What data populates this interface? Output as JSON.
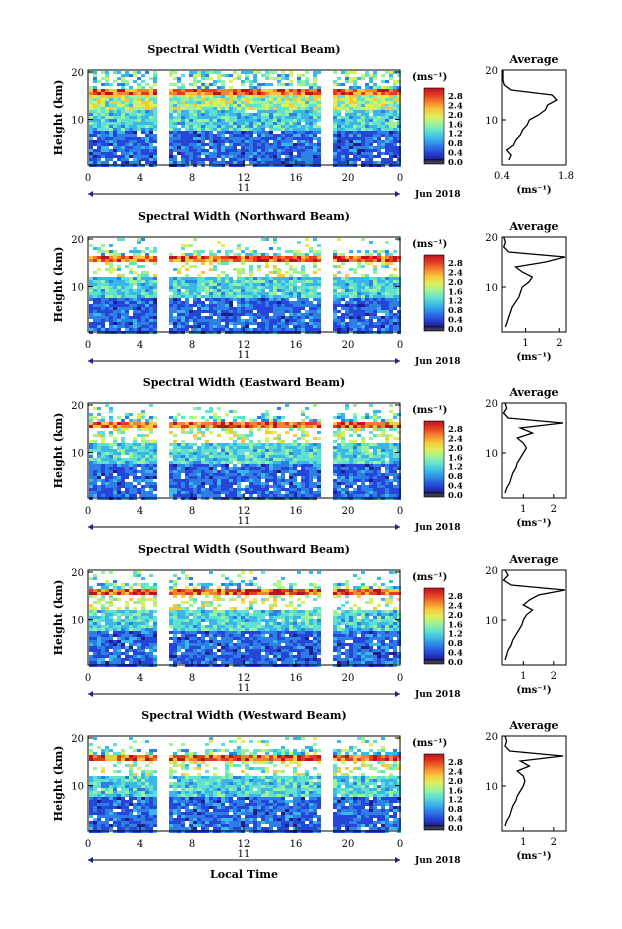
{
  "page": {
    "xlabel": "Local Time",
    "day_label": "11",
    "month_label": "Jun 2018",
    "avg_title": "Average",
    "colorbar_unit": "(ms⁻¹)",
    "avg_xlabel": "(ms⁻¹)",
    "ylabel": "Height (km)"
  },
  "colors": {
    "scale": [
      "#1e1e8c",
      "#2546d8",
      "#2d7fe6",
      "#3bb6ea",
      "#5fe0d0",
      "#9cf29a",
      "#dcf05e",
      "#f7c83c",
      "#f4842c",
      "#e43b23",
      "#b8141c"
    ],
    "low": "#3a3a55"
  },
  "chart_data": [
    {
      "type": "heatmap",
      "title": "Spectral Width (Vertical Beam)",
      "ylabel": "Height (km)",
      "x_ticks": [
        "0",
        "4",
        "8",
        "12",
        "16",
        "20",
        "0"
      ],
      "y_ticks": [
        "20",
        "10"
      ],
      "xlim": [
        0,
        24
      ],
      "ylim": [
        1,
        20
      ],
      "colorbar_ticks": [
        "2.8",
        "2.4",
        "2.0",
        "1.6",
        "1.2",
        "0.8",
        "0.4",
        "0.0"
      ],
      "colorbar_range": [
        0,
        3.0
      ],
      "gaps_hours": [
        [
          5.5,
          5.9
        ],
        [
          17.8,
          18.3
        ]
      ],
      "avg": {
        "x_ticks": [
          "0.4",
          "1.8"
        ],
        "xlim": [
          0.4,
          1.8
        ],
        "ylim": [
          1,
          20
        ],
        "height_km": [
          2,
          3,
          4,
          5,
          6,
          7,
          8,
          9,
          10,
          11,
          12,
          13,
          14,
          15,
          16,
          17,
          18,
          19,
          20
        ],
        "values": [
          0.55,
          0.6,
          0.5,
          0.65,
          0.7,
          0.8,
          0.85,
          0.95,
          1.0,
          1.2,
          1.35,
          1.4,
          1.6,
          1.5,
          0.6,
          0.45,
          0.42,
          0.41,
          0.4
        ]
      }
    },
    {
      "type": "heatmap",
      "title": "Spectral Width (Northward Beam)",
      "ylabel": "Height (km)",
      "x_ticks": [
        "0",
        "4",
        "8",
        "12",
        "16",
        "20",
        "0"
      ],
      "y_ticks": [
        "20",
        "10"
      ],
      "xlim": [
        0,
        24
      ],
      "ylim": [
        1,
        20
      ],
      "colorbar_ticks": [
        "2.8",
        "2.4",
        "2.0",
        "1.6",
        "1.2",
        "0.8",
        "0.4",
        "0.0"
      ],
      "colorbar_range": [
        0,
        3.0
      ],
      "gaps_hours": [
        [
          5.5,
          5.9
        ],
        [
          17.8,
          18.3
        ]
      ],
      "avg": {
        "x_ticks": [
          "1",
          "2"
        ],
        "xlim": [
          0.3,
          2.2
        ],
        "ylim": [
          1,
          20
        ],
        "height_km": [
          2,
          3,
          4,
          5,
          6,
          7,
          8,
          9,
          10,
          11,
          12,
          13,
          14,
          15,
          16,
          17,
          18,
          19,
          20
        ],
        "values": [
          0.4,
          0.45,
          0.5,
          0.55,
          0.6,
          0.7,
          0.8,
          0.85,
          0.9,
          1.1,
          1.2,
          0.9,
          0.7,
          1.6,
          2.2,
          0.5,
          0.35,
          0.4,
          0.35
        ]
      }
    },
    {
      "type": "heatmap",
      "title": "Spectral Width (Eastward Beam)",
      "ylabel": "Height (km)",
      "x_ticks": [
        "0",
        "4",
        "8",
        "12",
        "16",
        "20",
        "0"
      ],
      "y_ticks": [
        "20",
        "10"
      ],
      "xlim": [
        0,
        24
      ],
      "ylim": [
        1,
        20
      ],
      "colorbar_ticks": [
        "2.8",
        "2.4",
        "2.0",
        "1.6",
        "1.2",
        "0.8",
        "0.4",
        "0.0"
      ],
      "colorbar_range": [
        0,
        3.0
      ],
      "gaps_hours": [
        [
          5.5,
          5.9
        ],
        [
          17.8,
          18.3
        ]
      ],
      "avg": {
        "x_ticks": [
          "1",
          "2"
        ],
        "xlim": [
          0.3,
          2.4
        ],
        "ylim": [
          1,
          20
        ],
        "height_km": [
          2,
          3,
          4,
          5,
          6,
          7,
          8,
          9,
          10,
          11,
          12,
          13,
          14,
          15,
          16,
          17,
          18,
          19,
          20
        ],
        "values": [
          0.4,
          0.45,
          0.55,
          0.6,
          0.65,
          0.75,
          0.8,
          0.9,
          1.0,
          1.1,
          1.0,
          0.8,
          1.3,
          0.9,
          2.3,
          0.5,
          0.35,
          0.45,
          0.4
        ]
      }
    },
    {
      "type": "heatmap",
      "title": "Spectral Width (Southward Beam)",
      "ylabel": "Height (km)",
      "x_ticks": [
        "0",
        "4",
        "8",
        "12",
        "16",
        "20",
        "0"
      ],
      "y_ticks": [
        "20",
        "10"
      ],
      "xlim": [
        0,
        24
      ],
      "ylim": [
        1,
        20
      ],
      "colorbar_ticks": [
        "2.8",
        "2.4",
        "2.0",
        "1.6",
        "1.2",
        "0.8",
        "0.4",
        "0.0"
      ],
      "colorbar_range": [
        0,
        3.0
      ],
      "gaps_hours": [
        [
          5.5,
          5.9
        ],
        [
          17.8,
          18.3
        ]
      ],
      "avg": {
        "x_ticks": [
          "1",
          "2"
        ],
        "xlim": [
          0.3,
          2.4
        ],
        "ylim": [
          1,
          20
        ],
        "height_km": [
          2,
          3,
          4,
          5,
          6,
          7,
          8,
          9,
          10,
          11,
          12,
          13,
          14,
          15,
          16,
          17,
          18,
          19,
          20
        ],
        "values": [
          0.4,
          0.45,
          0.5,
          0.6,
          0.65,
          0.75,
          0.85,
          0.95,
          1.0,
          1.1,
          1.3,
          1.0,
          1.2,
          1.5,
          2.4,
          0.6,
          0.35,
          0.5,
          0.4
        ]
      }
    },
    {
      "type": "heatmap",
      "title": "Spectral Width (Westward Beam)",
      "ylabel": "Height (km)",
      "x_ticks": [
        "0",
        "4",
        "8",
        "12",
        "16",
        "20",
        "0"
      ],
      "y_ticks": [
        "20",
        "10"
      ],
      "xlim": [
        0,
        24
      ],
      "ylim": [
        1,
        20
      ],
      "colorbar_ticks": [
        "2.8",
        "2.4",
        "2.0",
        "1.6",
        "1.2",
        "0.8",
        "0.4",
        "0.0"
      ],
      "colorbar_range": [
        0,
        3.0
      ],
      "gaps_hours": [
        [
          5.5,
          5.9
        ],
        [
          17.8,
          18.3
        ]
      ],
      "avg": {
        "x_ticks": [
          "1",
          "2"
        ],
        "xlim": [
          0.3,
          2.4
        ],
        "ylim": [
          1,
          20
        ],
        "height_km": [
          2,
          3,
          4,
          5,
          6,
          7,
          8,
          9,
          10,
          11,
          12,
          13,
          14,
          15,
          16,
          17,
          18,
          19,
          20
        ],
        "values": [
          0.4,
          0.45,
          0.55,
          0.6,
          0.65,
          0.75,
          0.8,
          0.9,
          1.0,
          1.05,
          1.0,
          0.8,
          1.2,
          0.9,
          2.3,
          0.55,
          0.4,
          0.45,
          0.4
        ]
      }
    }
  ]
}
